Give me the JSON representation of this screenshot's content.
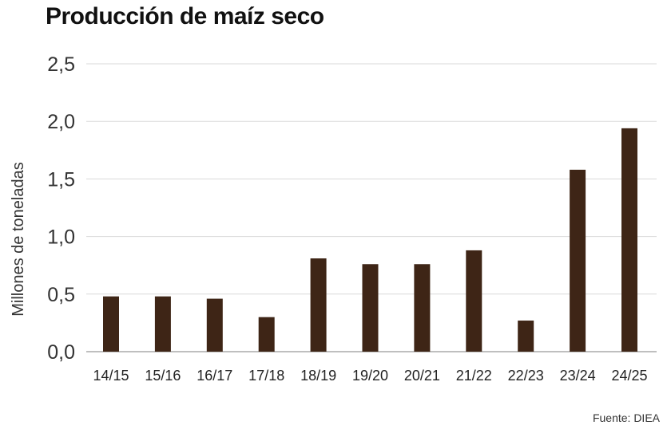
{
  "chart_data": {
    "type": "bar",
    "title": "Producción de maíz seco",
    "ylabel": "Millones de toneladas",
    "xlabel": "",
    "categories": [
      "14/15",
      "15/16",
      "16/17",
      "17/18",
      "18/19",
      "19/20",
      "20/21",
      "21/22",
      "22/23",
      "23/24",
      "24/25"
    ],
    "values": [
      0.48,
      0.48,
      0.46,
      0.3,
      0.81,
      0.76,
      0.76,
      0.88,
      0.27,
      1.58,
      1.94
    ],
    "ylim": [
      0,
      2.5
    ],
    "yticks": [
      "0,0",
      "0,5",
      "1,0",
      "1,5",
      "2,0",
      "2,5"
    ],
    "grid": true,
    "bar_color": "#3e2516",
    "grid_color": "#d9d9d9"
  },
  "source_text": "Fuente: DIEA"
}
